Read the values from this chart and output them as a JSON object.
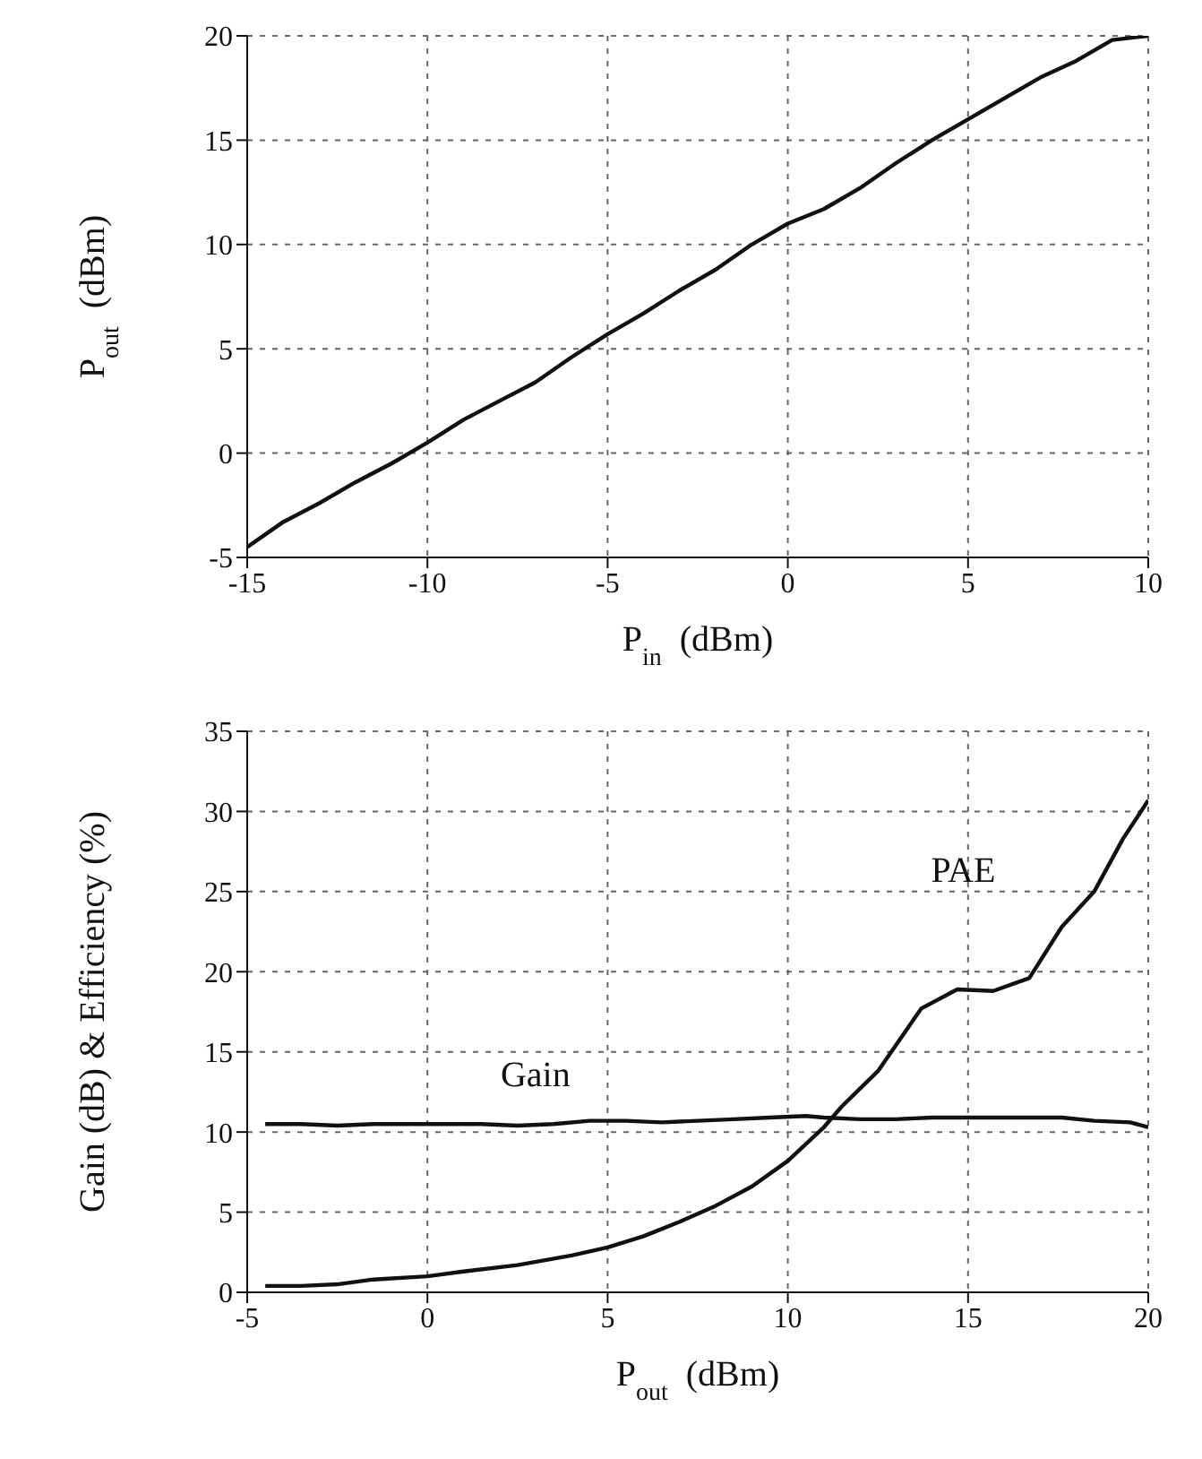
{
  "chart_data": [
    {
      "type": "line",
      "xlabel": "P$_{in}$  (dBm)",
      "ylabel": "P$_{out}$  (dBm)",
      "xlim": [
        -15,
        10
      ],
      "xticks": [
        -15,
        -10,
        -5,
        0,
        5,
        10
      ],
      "ylim": [
        -5,
        20
      ],
      "yticks": [
        -5,
        0,
        5,
        10,
        15,
        20
      ],
      "grid": true,
      "line_style": "solid",
      "marker": "none",
      "series": [
        {
          "color": "#111111",
          "x": [
            -15,
            -14,
            -13,
            -12,
            -11,
            -10,
            -9,
            -8,
            -7,
            -6,
            -5,
            -4,
            -3,
            -2,
            -1,
            0,
            1,
            2,
            3,
            4,
            5,
            6,
            7,
            8,
            9,
            10
          ],
          "values": [
            -4.5,
            -3.3,
            -2.4,
            -1.4,
            -0.5,
            0.5,
            1.6,
            2.5,
            3.4,
            4.6,
            5.7,
            6.7,
            7.8,
            8.8,
            10.0,
            11.0,
            11.7,
            12.7,
            13.9,
            15.0,
            16.0,
            17.0,
            18.0,
            18.8,
            19.8,
            20.0
          ]
        }
      ]
    },
    {
      "type": "line",
      "xlabel": "P$_{out}$  (dBm)",
      "ylabel": "Gain (dB) & Efficiency (%)",
      "xlim": [
        -5,
        20
      ],
      "xticks": [
        -5,
        0,
        5,
        10,
        15,
        20
      ],
      "ylim": [
        0,
        35
      ],
      "yticks": [
        0,
        5,
        10,
        15,
        20,
        25,
        30,
        35
      ],
      "grid": true,
      "line_style": "solid",
      "marker": "none",
      "series": [
        {
          "name": "Gain",
          "color": "#111111",
          "x": [
            -4.5,
            -3.5,
            -2.5,
            -1.5,
            0,
            1.5,
            2.5,
            3.5,
            4.5,
            5.5,
            6.5,
            7.5,
            8.5,
            9.5,
            10.5,
            11,
            12,
            13,
            14,
            15,
            16,
            17,
            17.6,
            18.5,
            19.5,
            20
          ],
          "values": [
            10.5,
            10.5,
            10.4,
            10.5,
            10.5,
            10.5,
            10.4,
            10.5,
            10.7,
            10.7,
            10.6,
            10.7,
            10.8,
            10.9,
            11.0,
            10.9,
            10.8,
            10.8,
            10.9,
            10.9,
            10.9,
            10.9,
            10.9,
            10.7,
            10.6,
            10.3
          ]
        },
        {
          "name": "PAE",
          "color": "#111111",
          "x": [
            -4.5,
            -3.5,
            -2.5,
            -1.5,
            0,
            1,
            2.5,
            4,
            5,
            6,
            7,
            8,
            9,
            10,
            11,
            11.5,
            12.5,
            13.7,
            14.7,
            15.7,
            16.7,
            17.6,
            18.5,
            19.3,
            20
          ],
          "values": [
            0.4,
            0.4,
            0.5,
            0.8,
            1.0,
            1.3,
            1.7,
            2.3,
            2.8,
            3.5,
            4.4,
            5.4,
            6.6,
            8.2,
            10.3,
            11.6,
            13.8,
            17.7,
            18.9,
            18.8,
            19.6,
            22.8,
            25.0,
            28.3,
            30.7
          ]
        }
      ]
    }
  ]
}
